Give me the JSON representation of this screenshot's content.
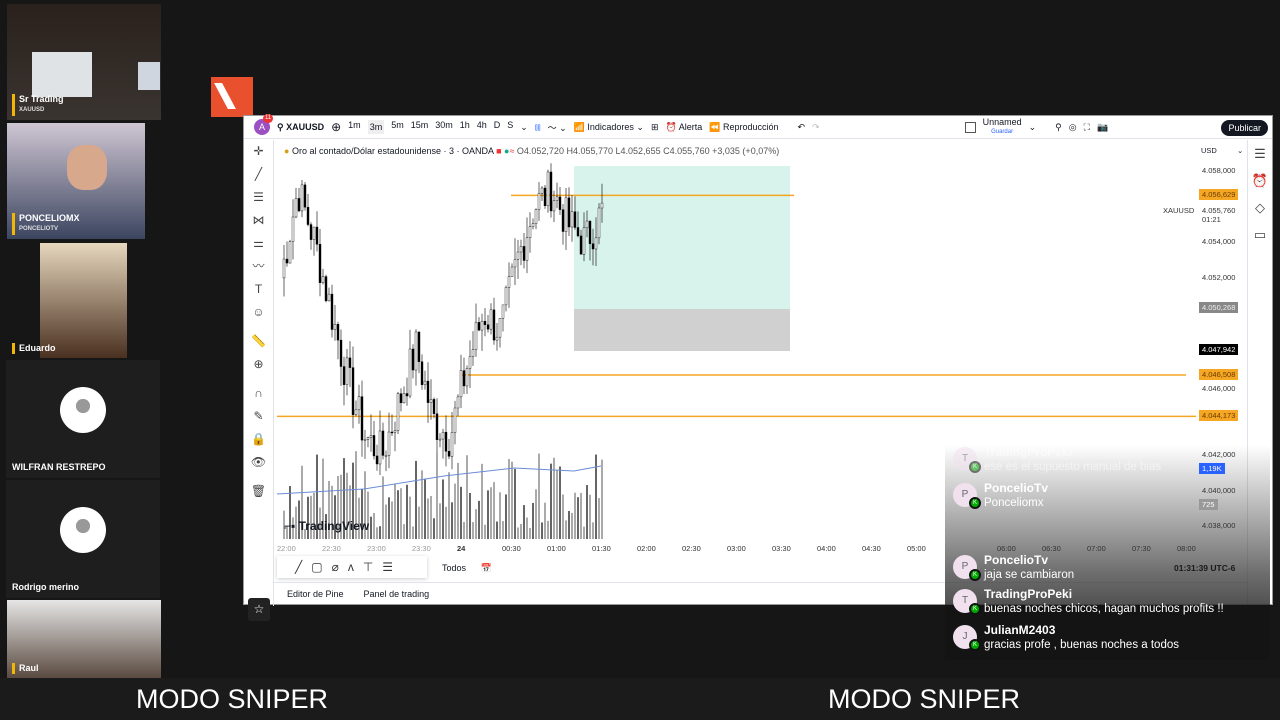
{
  "participants": [
    {
      "name": "Sr Trading",
      "sub": "XAUUSD"
    },
    {
      "name": "PONCELIOMX",
      "sub": "PONCELIOTV"
    },
    {
      "name": "Eduardo"
    },
    {
      "name": "WILFRAN RESTREPO"
    },
    {
      "name": "Rodrigo merino"
    },
    {
      "name": "Raul"
    }
  ],
  "toolbar": {
    "avatar": "A",
    "badge": "11",
    "symbol": "XAUUSD",
    "intervals": [
      "1m",
      "3m",
      "5m",
      "15m",
      "30m",
      "1h",
      "4h",
      "D",
      "S"
    ],
    "selected_interval": "3m",
    "indicators": "Indicadores",
    "alert": "Alerta",
    "replay": "Reproducción",
    "layout_name": "Unnamed",
    "save": "Guardar",
    "publish": "Publicar"
  },
  "legend": {
    "title": "Oro al contado/Dólar estadounidense · 3 · OANDA",
    "o": "O4.052,720",
    "h": "H4.055,770",
    "l": "L4.052,655",
    "c": "C4.055,760",
    "chg": "+3,035 (+0,07%)"
  },
  "price_axis": {
    "currency": "USD",
    "ticks": [
      "4.058,000",
      "4.054,000",
      "4.052,000",
      "4.046,000",
      "4.042,000",
      "4.040,000",
      "4.038,000"
    ],
    "symbol": "XAUUSD",
    "last": "4.055,760",
    "countdown": "01:21",
    "labels": {
      "orange1": "4.056,629",
      "gray": "4.050,268",
      "crosshair": "4.047,942",
      "orange2": "4.046,508",
      "orange3": "4.044,173",
      "vol1": "1,19K",
      "vol2": "725"
    }
  },
  "time_axis": {
    "ticks": [
      "22:00",
      "22:30",
      "23:00",
      "23:30",
      "24",
      "00:30",
      "01:00",
      "01:30",
      "02:00",
      "02:30",
      "03:00",
      "03:30",
      "04:00",
      "04:30",
      "05:00",
      "06:00",
      "06:30",
      "07:00",
      "07:30",
      "08:00"
    ],
    "clock": "01:31:39 UTC-6"
  },
  "range_bar": {
    "all": "Todos"
  },
  "bottom_tabs": [
    "Editor de Pine",
    "Panel de trading"
  ],
  "watermark": "TradingView",
  "colors": {
    "orange": "#f5a623",
    "green_zone": "#d8f3ec",
    "gray_zone": "#d0d0d0",
    "accent": "#e8502e"
  },
  "chat": [
    {
      "initial": "T",
      "user": "TradingProPeki",
      "text": "ese es el supuesto manual de bias"
    },
    {
      "initial": "P",
      "user": "PoncelioTv",
      "text": "Ponceliomx"
    },
    {
      "initial": "P",
      "user": "PoncelioTv",
      "text": "jaja se cambiaron"
    },
    {
      "initial": "T",
      "user": "TradingProPeki",
      "text": "buenas noches chicos, hagan muchos profits !!"
    },
    {
      "initial": "J",
      "user": "JulianM2403",
      "text": "gracias profe , buenas noches a todos"
    }
  ],
  "banner": [
    "MODO SNIPER",
    "MODO SNIPER"
  ]
}
